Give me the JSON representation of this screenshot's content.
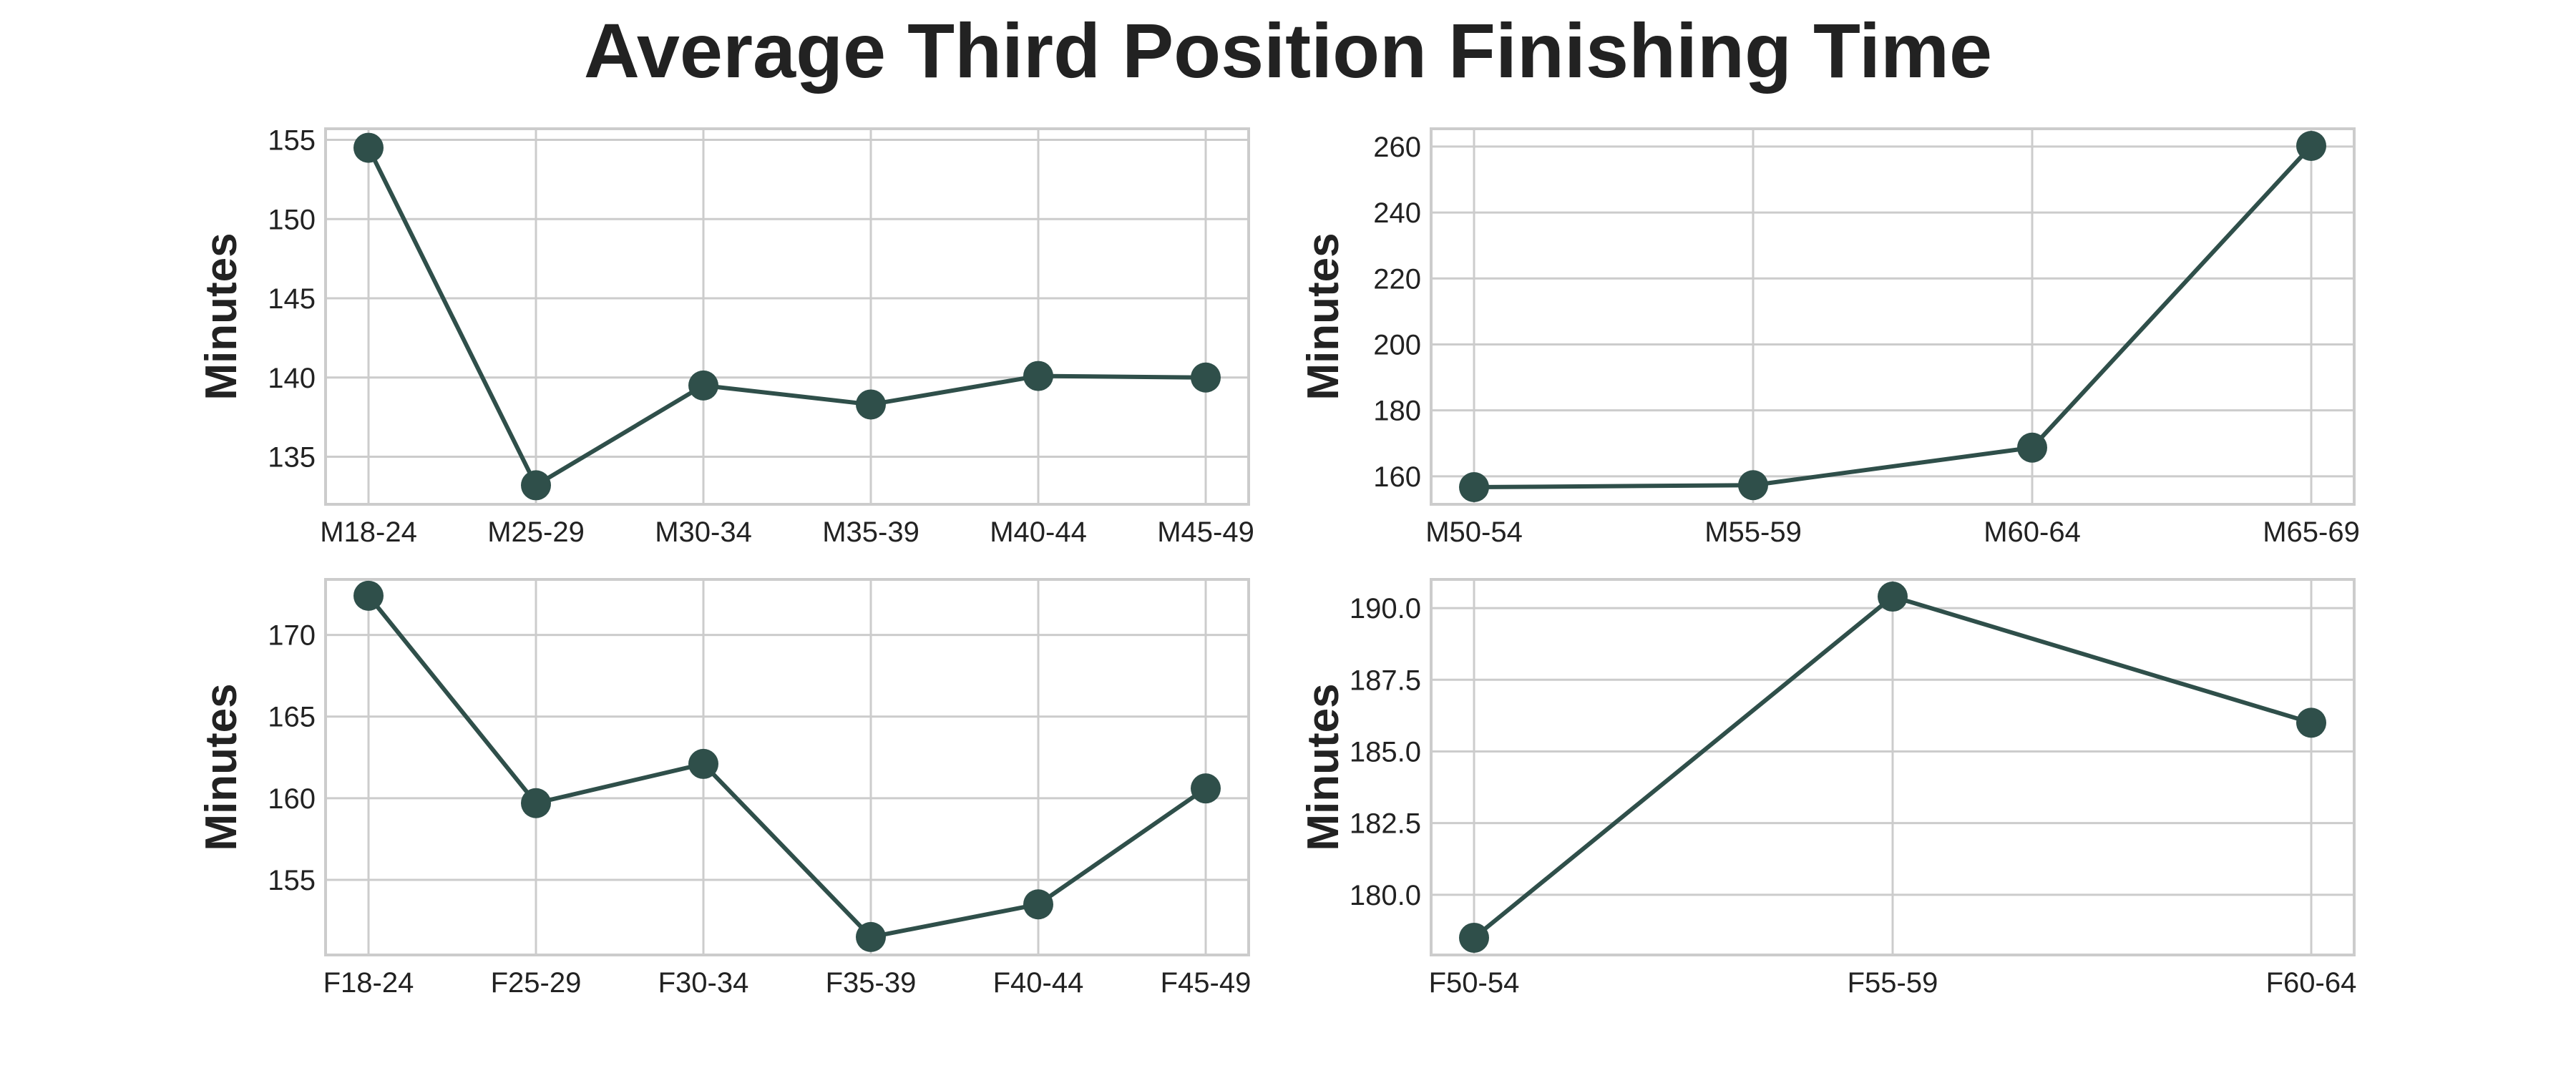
{
  "title": "Average Third Position Finishing Time",
  "colors": {
    "line": "#2f4f4a",
    "marker": "#2f4f4a",
    "grid": "#cccccc",
    "frame": "#cccccc"
  },
  "chart_data": [
    {
      "type": "line",
      "categories": [
        "M18-24",
        "M25-29",
        "M30-34",
        "M35-39",
        "M40-44",
        "M45-49"
      ],
      "values": [
        154.5,
        133.2,
        139.5,
        138.3,
        140.1,
        140.0
      ],
      "ylabel": "Minutes",
      "ylim": [
        132,
        155.7
      ],
      "yticks": [
        135,
        140,
        145,
        150,
        155
      ],
      "ytick_labels": [
        "135",
        "140",
        "145",
        "150",
        "155"
      ],
      "grid": true
    },
    {
      "type": "line",
      "categories": [
        "M50-54",
        "M55-59",
        "M60-64",
        "M65-69"
      ],
      "values": [
        156.7,
        157.3,
        168.7,
        260.2
      ],
      "ylabel": "Minutes",
      "ylim": [
        151.5,
        265.4
      ],
      "yticks": [
        160,
        180,
        200,
        220,
        240,
        260
      ],
      "ytick_labels": [
        "160",
        "180",
        "200",
        "220",
        "240",
        "260"
      ],
      "grid": true
    },
    {
      "type": "line",
      "categories": [
        "F18-24",
        "F25-29",
        "F30-34",
        "F35-39",
        "F40-44",
        "F45-49"
      ],
      "values": [
        172.4,
        159.7,
        162.1,
        151.5,
        153.5,
        160.6
      ],
      "ylabel": "Minutes",
      "ylim": [
        150.4,
        173.4
      ],
      "yticks": [
        155,
        160,
        165,
        170
      ],
      "ytick_labels": [
        "155",
        "160",
        "165",
        "170"
      ],
      "grid": true
    },
    {
      "type": "line",
      "categories": [
        "F50-54",
        "F55-59",
        "F60-64"
      ],
      "values": [
        178.5,
        190.4,
        186.0
      ],
      "ylabel": "Minutes",
      "ylim": [
        177.9,
        191.0
      ],
      "yticks": [
        180.0,
        182.5,
        185.0,
        187.5,
        190.0
      ],
      "ytick_labels": [
        "180.0",
        "182.5",
        "185.0",
        "187.5",
        "190.0"
      ],
      "grid": true
    }
  ]
}
